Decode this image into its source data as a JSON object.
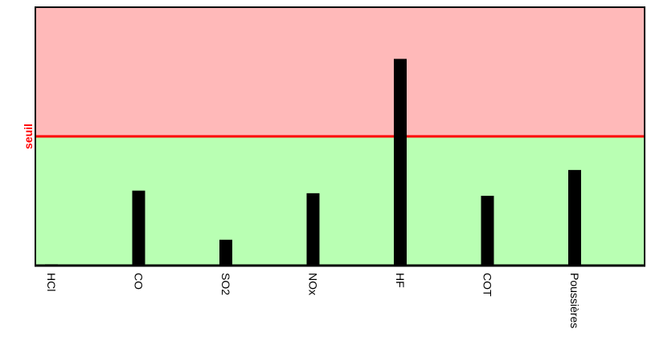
{
  "chart_data": {
    "type": "bar",
    "categories": [
      "HCl",
      "CO",
      "SO2",
      "NOx",
      "HF",
      "COT",
      "Poussières"
    ],
    "values": [
      0.5,
      29,
      10,
      28,
      80,
      27,
      37
    ],
    "color": "#000000",
    "ylim": [
      0,
      100
    ],
    "threshold": 50,
    "threshold_label": "seuil",
    "threshold_color": "#ff0000",
    "above_color": "#ffb9b9",
    "below_color": "#b9ffb3"
  }
}
